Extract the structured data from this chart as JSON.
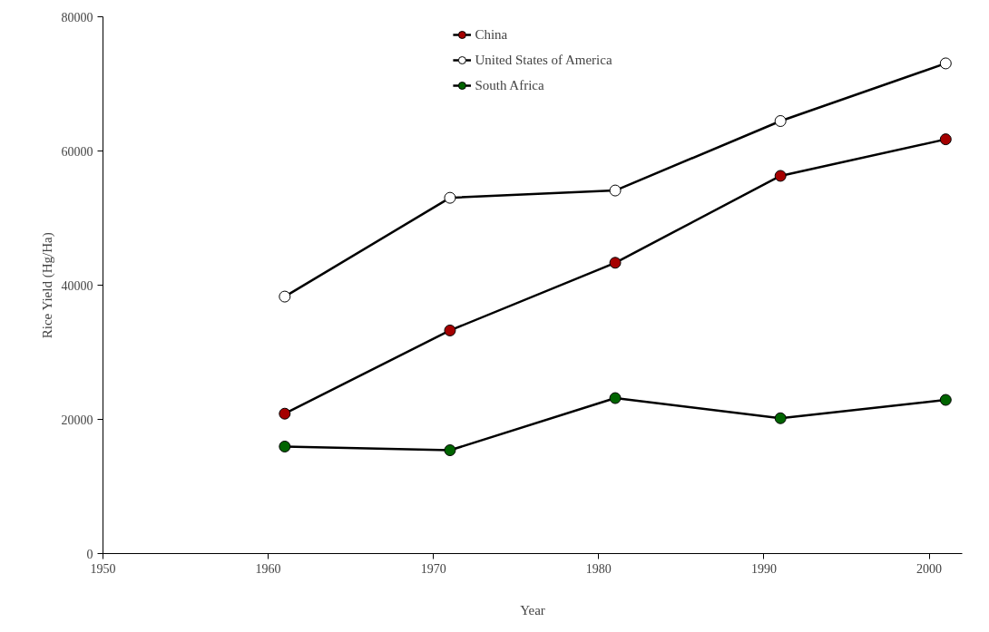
{
  "chart_data": {
    "type": "line",
    "xlabel": "Year",
    "ylabel": "Rice Yield (Hg/Ha)",
    "x": [
      1961,
      1971,
      1981,
      1991,
      2001
    ],
    "series": [
      {
        "name": "China",
        "color": "#a50000",
        "values": [
          20850,
          33250,
          43340,
          56290,
          61740
        ]
      },
      {
        "name": "United States of America",
        "color": "#ffffff",
        "values": [
          38300,
          53020,
          54110,
          64460,
          73050
        ]
      },
      {
        "name": "South Africa",
        "color": "#006400",
        "values": [
          15950,
          15400,
          23170,
          20170,
          22900
        ]
      }
    ],
    "xlim": [
      1950,
      2002
    ],
    "ylim": [
      0,
      80000
    ],
    "xticks": [
      1950,
      1960,
      1970,
      1980,
      1990,
      2000
    ],
    "yticks": [
      0,
      20000,
      40000,
      60000,
      80000
    ],
    "marker": "circle",
    "line_style": "solid",
    "grid": false,
    "legend": "top"
  }
}
